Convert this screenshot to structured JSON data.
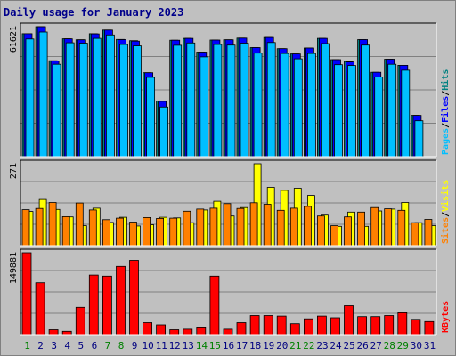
{
  "chart_data": [
    {
      "type": "bar",
      "title": "Daily usage for January 2023",
      "categories": [
        "1",
        "2",
        "3",
        "4",
        "5",
        "6",
        "7",
        "8",
        "9",
        "10",
        "11",
        "12",
        "13",
        "14",
        "15",
        "16",
        "17",
        "18",
        "19",
        "20",
        "21",
        "22",
        "23",
        "24",
        "25",
        "26",
        "27",
        "28",
        "29",
        "30",
        "31"
      ],
      "weekend_categories": [
        "1",
        "7",
        "8",
        "14",
        "15",
        "21",
        "22",
        "28",
        "29"
      ],
      "ytick": "61621",
      "ylim": [
        0,
        61621
      ],
      "grid": true,
      "right_label": [
        "Pages",
        "/",
        "Files",
        "/",
        "Hits"
      ],
      "right_label_colors": [
        "#00bfff",
        "#000000",
        "#0000ff",
        "#000000",
        "#008080"
      ],
      "series": [
        {
          "name": "Hits",
          "color": "#008080",
          "values": [
            58300,
            61621,
            45500,
            55900,
            55400,
            58300,
            60000,
            55600,
            55000,
            39800,
            26400,
            55200,
            56100,
            49600,
            55300,
            55400,
            56200,
            51700,
            56500,
            51200,
            48700,
            51500,
            56100,
            46000,
            45100,
            55500,
            40000,
            46200,
            43300,
            19600,
            0
          ]
        },
        {
          "name": "Files",
          "color": "#0000ff",
          "values": [
            58300,
            61621,
            45400,
            55900,
            55400,
            58200,
            60000,
            55500,
            54800,
            39800,
            26200,
            55200,
            56100,
            49600,
            55300,
            55400,
            56200,
            51700,
            56500,
            51200,
            48700,
            51500,
            56100,
            46000,
            44900,
            55500,
            40000,
            46200,
            43300,
            19600,
            0
          ]
        },
        {
          "name": "Pages",
          "color": "#00bfff",
          "values": [
            55800,
            59100,
            43800,
            54000,
            53800,
            56100,
            57700,
            53200,
            52500,
            37600,
            23500,
            52800,
            53900,
            47300,
            53200,
            52900,
            53800,
            49100,
            54100,
            48900,
            46400,
            48900,
            53600,
            43600,
            43200,
            52900,
            37800,
            43800,
            41000,
            17000,
            0
          ]
        }
      ]
    },
    {
      "type": "bar",
      "categories": [
        "1",
        "2",
        "3",
        "4",
        "5",
        "6",
        "7",
        "8",
        "9",
        "10",
        "11",
        "12",
        "13",
        "14",
        "15",
        "16",
        "17",
        "18",
        "19",
        "20",
        "21",
        "22",
        "23",
        "24",
        "25",
        "26",
        "27",
        "28",
        "29",
        "30",
        "31"
      ],
      "ytick": "271",
      "ylim": [
        0,
        271
      ],
      "grid": true,
      "right_label": [
        "Sites",
        "/",
        "Visits"
      ],
      "right_label_colors": [
        "#ff8000",
        "#000000",
        "#ffff00"
      ],
      "series": [
        {
          "name": "Visits",
          "color": "#ffff00",
          "values": [
            113,
            153,
            120,
            95,
            66,
            124,
            77,
            94,
            65,
            69,
            94,
            92,
            76,
            118,
            147,
            98,
            126,
            271,
            193,
            183,
            190,
            166,
            101,
            64,
            111,
            64,
            115,
            121,
            143,
            76,
            66
          ]
        },
        {
          "name": "Sites",
          "color": "#ff8000",
          "values": [
            119,
            123,
            143,
            96,
            141,
            118,
            86,
            91,
            78,
            93,
            90,
            91,
            114,
            121,
            124,
            139,
            123,
            142,
            137,
            117,
            124,
            130,
            98,
            66,
            95,
            111,
            126,
            122,
            117,
            76,
            87
          ]
        }
      ]
    },
    {
      "type": "bar",
      "categories": [
        "1",
        "2",
        "3",
        "4",
        "5",
        "6",
        "7",
        "8",
        "9",
        "10",
        "11",
        "12",
        "13",
        "14",
        "15",
        "16",
        "17",
        "18",
        "19",
        "20",
        "21",
        "22",
        "23",
        "24",
        "25",
        "26",
        "27",
        "28",
        "29",
        "30",
        "31"
      ],
      "ytick": "149881",
      "ylim": [
        0,
        149881
      ],
      "grid": true,
      "right_label": [
        "KBytes"
      ],
      "right_label_colors": [
        "#ff0000"
      ],
      "series": [
        {
          "name": "KBytes",
          "color": "#ff0000",
          "values": [
            149881,
            95000,
            9000,
            6000,
            50000,
            109000,
            107000,
            125000,
            136000,
            22000,
            18000,
            9000,
            10000,
            14000,
            107000,
            10000,
            22000,
            35000,
            35000,
            34000,
            20000,
            29000,
            34000,
            31000,
            53000,
            33000,
            33000,
            35000,
            40000,
            28000,
            24000
          ]
        }
      ]
    }
  ]
}
